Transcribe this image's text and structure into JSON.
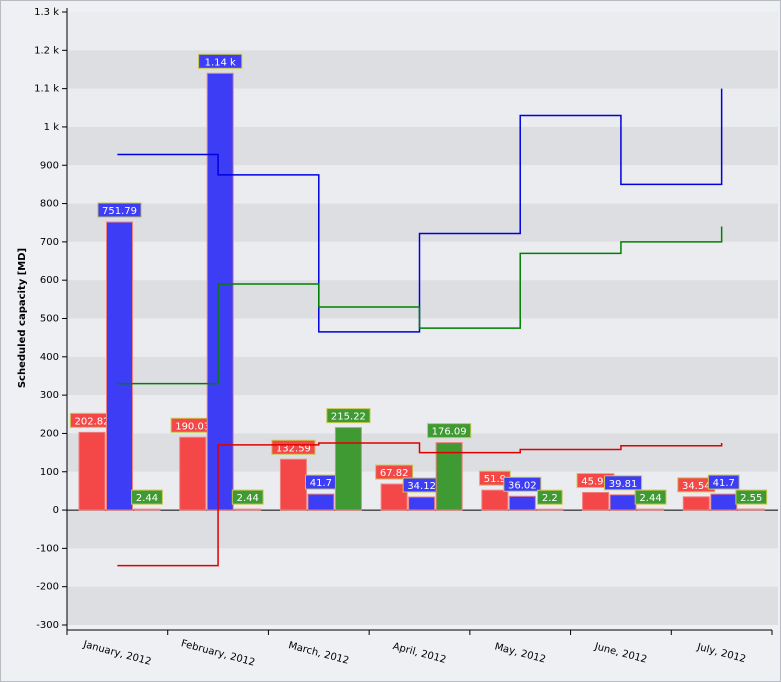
{
  "chart_data": {
    "type": "bar",
    "y_label": "Scheduled capacity [MD]",
    "categories": [
      "January, 2012",
      "February, 2012",
      "March, 2012",
      "April, 2012",
      "May, 2012",
      "June, 2012",
      "July, 2012"
    ],
    "ylim": [
      -300,
      1300
    ],
    "yticks": [
      {
        "value": 1300,
        "label": "1.3 k"
      },
      {
        "value": 1200,
        "label": "1.2 k"
      },
      {
        "value": 1100,
        "label": "1.1 k"
      },
      {
        "value": 1000,
        "label": "1 k"
      },
      900,
      800,
      700,
      600,
      500,
      400,
      300,
      200,
      100,
      0,
      -100,
      -200,
      -300
    ],
    "grid": "bands",
    "series": [
      {
        "type": "bar",
        "color": "#f44848",
        "values": [
          202.82,
          190.03,
          132.59,
          67.82,
          51.9,
          45.93,
          34.54
        ]
      },
      {
        "type": "bar",
        "color": "#3d3df6",
        "values": [
          751.79,
          1140,
          41.7,
          34.12,
          36.02,
          39.81,
          41.7
        ],
        "value_labels": [
          "751.79",
          "1.14 k",
          "41.7",
          "34.12",
          "36.02",
          "39.81",
          "41.7"
        ]
      },
      {
        "type": "bar",
        "color": "#3f9a33",
        "values": [
          2.44,
          2.44,
          215.22,
          176.09,
          2.2,
          2.44,
          2.55
        ]
      },
      {
        "type": "step",
        "color": "#0000e0",
        "values": [
          928,
          875,
          465,
          722,
          1030,
          850,
          1100
        ]
      },
      {
        "type": "step",
        "color": "#008000",
        "values": [
          330,
          590,
          530,
          475,
          670,
          700,
          740
        ]
      },
      {
        "type": "step",
        "color": "#e00000",
        "values": [
          -145,
          170,
          175,
          150,
          158,
          168,
          175
        ]
      }
    ]
  }
}
